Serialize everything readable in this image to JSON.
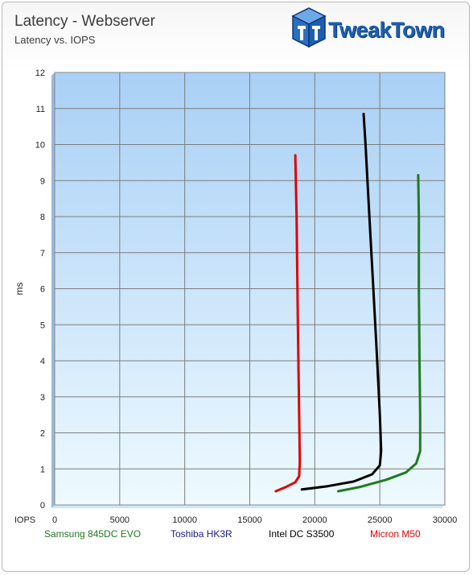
{
  "header": {
    "title": "Latency - Webserver",
    "subtitle": "Latency vs. IOPS"
  },
  "logo": {
    "text": "TweakTown",
    "icon": "tt-cube-logo"
  },
  "colors": {
    "samsung": "#1f7a1f",
    "toshiba": "#1a1a8c",
    "intel": "#000000",
    "micron": "#e00000",
    "plot_top": "#a9d0f5",
    "plot_bottom": "#eefaff"
  },
  "chart_data": {
    "type": "line",
    "title": "Latency - Webserver",
    "subtitle": "Latency vs. IOPS",
    "xlabel": "IOPS",
    "ylabel": "ms",
    "xlim": [
      0,
      30000
    ],
    "ylim": [
      0,
      12
    ],
    "x_ticks": [
      "0",
      "5000",
      "10000",
      "15000",
      "20000",
      "25000",
      "30000"
    ],
    "y_ticks": [
      "0",
      "1",
      "2",
      "3",
      "4",
      "5",
      "6",
      "7",
      "8",
      "9",
      "10",
      "11",
      "12"
    ],
    "grid": true,
    "legend_position": "bottom",
    "legend": [
      "Samsung 845DC  EVO",
      "Toshiba HK3R",
      "Intel DC S3500",
      "Micron M50"
    ],
    "series": [
      {
        "name": "Samsung 845DC  EVO",
        "color": "#1f7a1f",
        "points": [
          [
            21800,
            0.38
          ],
          [
            23500,
            0.5
          ],
          [
            25500,
            0.7
          ],
          [
            27000,
            0.9
          ],
          [
            27800,
            1.15
          ],
          [
            28100,
            1.5
          ],
          [
            28100,
            2.5
          ],
          [
            28050,
            4.0
          ],
          [
            28000,
            6.0
          ],
          [
            28000,
            8.0
          ],
          [
            27950,
            9.15
          ]
        ]
      },
      {
        "name": "Toshiba HK3R",
        "color": "#1a1a8c",
        "points": []
      },
      {
        "name": "Intel DC S3500",
        "color": "#000000",
        "points": [
          [
            19000,
            0.43
          ],
          [
            21000,
            0.52
          ],
          [
            23000,
            0.65
          ],
          [
            24400,
            0.85
          ],
          [
            25000,
            1.1
          ],
          [
            25100,
            1.5
          ],
          [
            25000,
            2.5
          ],
          [
            24800,
            4.0
          ],
          [
            24500,
            6.0
          ],
          [
            24200,
            8.0
          ],
          [
            23900,
            10.0
          ],
          [
            23750,
            10.85
          ]
        ]
      },
      {
        "name": "Micron M50",
        "color": "#e00000",
        "points": [
          [
            17000,
            0.38
          ],
          [
            17800,
            0.5
          ],
          [
            18500,
            0.63
          ],
          [
            18800,
            0.8
          ],
          [
            18850,
            1.2
          ],
          [
            18800,
            2.5
          ],
          [
            18700,
            5.0
          ],
          [
            18600,
            8.0
          ],
          [
            18500,
            9.7
          ]
        ]
      }
    ]
  }
}
